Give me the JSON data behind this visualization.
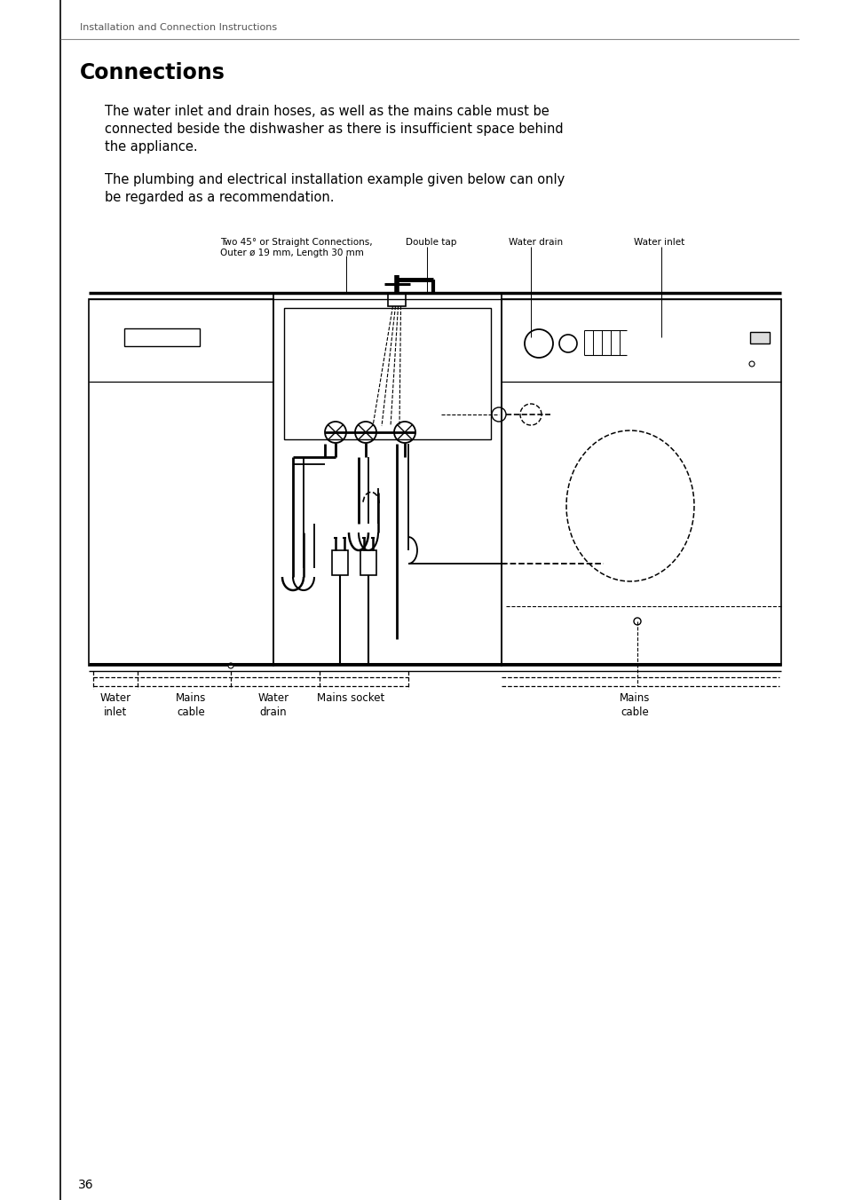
{
  "page_number": "36",
  "header_text": "Installation and Connection Instructions",
  "title": "Connections",
  "para1_line1": "The water inlet and drain hoses, as well as the mains cable must be",
  "para1_line2": "connected beside the dishwasher as there is insufficient space behind",
  "para1_line3": "the appliance.",
  "para2_line1": "The plumbing and electrical installation example given below can only",
  "para2_line2": "be regarded as a recommendation.",
  "label_conn1": "Two 45° or Straight Connections,",
  "label_conn2": "Outer ø 19 mm, Length 30 mm",
  "label_double_tap": "Double tap",
  "label_water_drain_top": "Water drain",
  "label_water_inlet_top": "Water inlet",
  "label_water_inlet_bot": "Water\ninlet",
  "label_mains_cable_bot1": "Mains\ncable",
  "label_water_drain_bot": "Water\ndrain",
  "label_mains_socket": "Mains socket",
  "label_mains_cable_bot2": "Mains\ncable",
  "bg_color": "#ffffff",
  "text_color": "#000000"
}
